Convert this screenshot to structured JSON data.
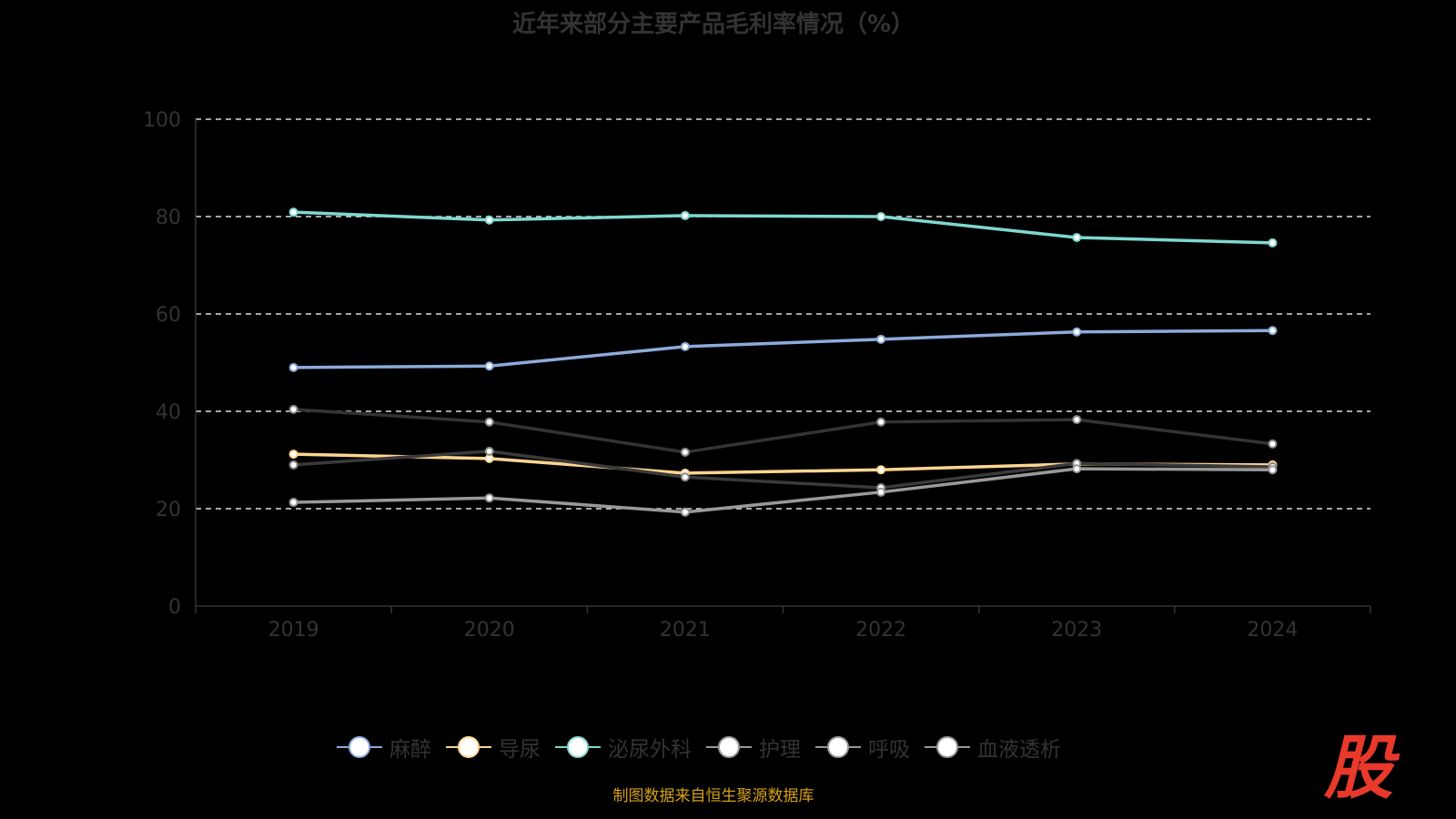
{
  "chart_data": {
    "type": "line",
    "title": "近年来部分主要产品毛利率情况（%）",
    "categories": [
      "2019",
      "2020",
      "2021",
      "2022",
      "2023",
      "2024"
    ],
    "ylim": [
      0,
      100
    ],
    "yticks": [
      0,
      20,
      40,
      60,
      80,
      100
    ],
    "grid": true,
    "legend_position": "bottom",
    "series": [
      {
        "name": "麻醉",
        "color": "#8eaadb",
        "values": [
          49.0,
          49.3,
          53.3,
          54.8,
          56.3,
          56.6
        ]
      },
      {
        "name": "导尿",
        "color": "#ffd591",
        "values": [
          31.2,
          30.3,
          27.3,
          28.0,
          29.2,
          29.0
        ]
      },
      {
        "name": "泌尿外科",
        "color": "#7fd8d0",
        "values": [
          80.9,
          79.3,
          80.2,
          80.0,
          75.7,
          74.6
        ]
      },
      {
        "name": "护理",
        "color": "#333333",
        "values": [
          40.4,
          37.8,
          31.6,
          37.8,
          38.3,
          33.3
        ]
      },
      {
        "name": "呼吸",
        "color": "#3a3a3a",
        "values": [
          29.0,
          31.8,
          26.5,
          24.3,
          29.3,
          28.6
        ]
      },
      {
        "name": "血液透析",
        "color": "#999999",
        "values": [
          21.3,
          22.2,
          19.3,
          23.4,
          28.2,
          28.0
        ]
      }
    ]
  },
  "source": "制图数据来自恒生聚源数据库",
  "logo": "股"
}
